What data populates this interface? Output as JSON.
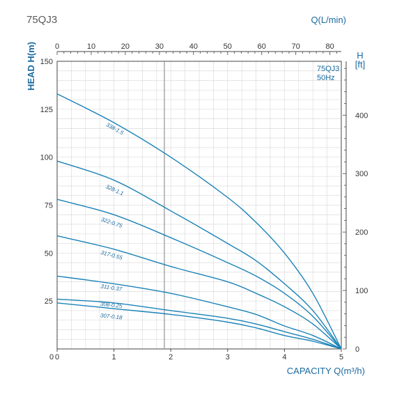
{
  "chart_data": {
    "type": "line",
    "title": "75QJ3",
    "top_axis_label": "Q(L/min)",
    "top_ticks": [
      "0",
      "10",
      "20",
      "30",
      "40",
      "50",
      "60",
      "70",
      "80"
    ],
    "top_ticks_values": [
      0,
      10,
      20,
      30,
      40,
      50,
      60,
      70,
      80
    ],
    "xlabel": "CAPACITY Q(m³/h)",
    "xlim": [
      0,
      5
    ],
    "x_ticks": [
      "0",
      "1",
      "2",
      "3",
      "4",
      "5"
    ],
    "ylabel": "HEAD H(m)",
    "ylim": [
      0,
      150
    ],
    "y_ticks": [
      "25",
      "50",
      "75",
      "100",
      "125",
      "150"
    ],
    "right_axis_label_line1": "H",
    "right_axis_label_line2": "[ft]",
    "right_ticks": [
      "0",
      "100",
      "200",
      "300",
      "400"
    ],
    "right_ticks_values_ft": [
      0,
      100,
      200,
      300,
      400
    ],
    "model_label_line1": "75QJ3",
    "model_label_line2": "50Hz",
    "grid": true,
    "line_color": "#1a82b8",
    "series": [
      {
        "name": "338-1.5",
        "x": [
          0,
          1,
          2,
          3,
          3.5,
          4,
          4.5,
          5
        ],
        "y": [
          133,
          118,
          100,
          79,
          66,
          50,
          29,
          0
        ]
      },
      {
        "name": "328-1.1",
        "x": [
          0,
          1,
          2,
          3,
          3.5,
          4,
          4.5,
          5
        ],
        "y": [
          98,
          88,
          72,
          55,
          46,
          34,
          20,
          0
        ]
      },
      {
        "name": "322-0.75",
        "x": [
          0,
          1,
          2,
          3,
          3.5,
          4,
          4.5,
          5
        ],
        "y": [
          78,
          70,
          58,
          45,
          38,
          29,
          17,
          0
        ]
      },
      {
        "name": "317-0.55",
        "x": [
          0,
          1,
          2,
          3,
          3.5,
          4,
          4.5,
          5
        ],
        "y": [
          59,
          52,
          43,
          35,
          29,
          22,
          13,
          0
        ]
      },
      {
        "name": "311-0.37",
        "x": [
          0,
          1,
          2,
          3,
          3.5,
          4,
          4.5,
          5
        ],
        "y": [
          38,
          34,
          29,
          22,
          18,
          12,
          7,
          0
        ]
      },
      {
        "name": "308-0.25",
        "x": [
          0,
          1,
          2,
          3,
          3.5,
          4,
          4.5,
          5
        ],
        "y": [
          26,
          24,
          20,
          16,
          13,
          9,
          5,
          0
        ]
      },
      {
        "name": "307-0.18",
        "x": [
          0,
          1,
          2,
          3,
          3.5,
          4,
          4.5,
          5
        ],
        "y": [
          24,
          21,
          18,
          14,
          11,
          7,
          4,
          0
        ]
      }
    ],
    "curve_labels": [
      {
        "series": "338-1.5",
        "x": 1.0,
        "y": 114
      },
      {
        "series": "328-1.1",
        "x": 1.0,
        "y": 82
      },
      {
        "series": "322-0.75",
        "x": 0.95,
        "y": 65
      },
      {
        "series": "317-0.55",
        "x": 0.95,
        "y": 48
      },
      {
        "series": "311-0.37",
        "x": 0.95,
        "y": 31
      },
      {
        "series": "308-0.25",
        "x": 0.95,
        "y": 22
      },
      {
        "series": "307-0.18",
        "x": 0.95,
        "y": 16
      }
    ]
  }
}
